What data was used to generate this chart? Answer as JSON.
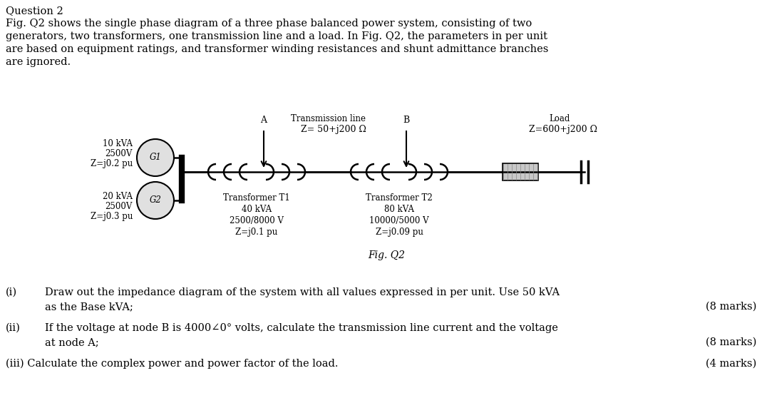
{
  "title_text": "Question 2",
  "paragraph_lines": [
    "Fig. Q2 shows the single phase diagram of a three phase balanced power system, consisting of two",
    "generators, two transformers, one transmission line and a load. In Fig. Q2, the parameters in per unit",
    "are based on equipment ratings, and transformer winding resistances and shunt admittance branches",
    "are ignored."
  ],
  "fig_caption": "Fig. Q2",
  "g1_label": "G1",
  "g2_label": "G2",
  "g1_info_lines": [
    "10 kVA",
    "2500V",
    "Z=j0.2 pu"
  ],
  "g2_info_lines": [
    "20 kVA",
    "2500V",
    "Z=j0.3 pu"
  ],
  "t1_info_lines": [
    "Transformer T1",
    "40 kVA",
    "2500/8000 V",
    "Z=j0.1 pu"
  ],
  "t2_info_lines": [
    "Transformer T2",
    "80 kVA",
    "10000/5000 V",
    "Z=j0.09 pu"
  ],
  "trans_line_line1": "Transmission line",
  "trans_line_line2": "Z= 50+j200 Ω",
  "load_line1": "Load",
  "load_line2": "Z=600+j200 Ω",
  "node_a": "A",
  "node_b": "B",
  "q1_line1": "Draw out the impedance diagram of the system with all values expressed in per unit. Use 50 kVA",
  "q1_line2": "as the Base kVA;",
  "q1_marks": "(8 marks)",
  "q2_line1": "If the voltage at node B is 4000∠0° volts, calculate the transmission line current and the voltage",
  "q2_line2": "at node A;",
  "q2_marks": "(8 marks)",
  "q3_line": "Calculate the complex power and power factor of the load.",
  "q3_marks": "(4 marks)",
  "bg_color": "#ffffff",
  "text_color": "#000000",
  "line_color": "#000000",
  "font_size_body": 10.5,
  "font_size_small": 9.0,
  "font_size_diagram": 8.5
}
